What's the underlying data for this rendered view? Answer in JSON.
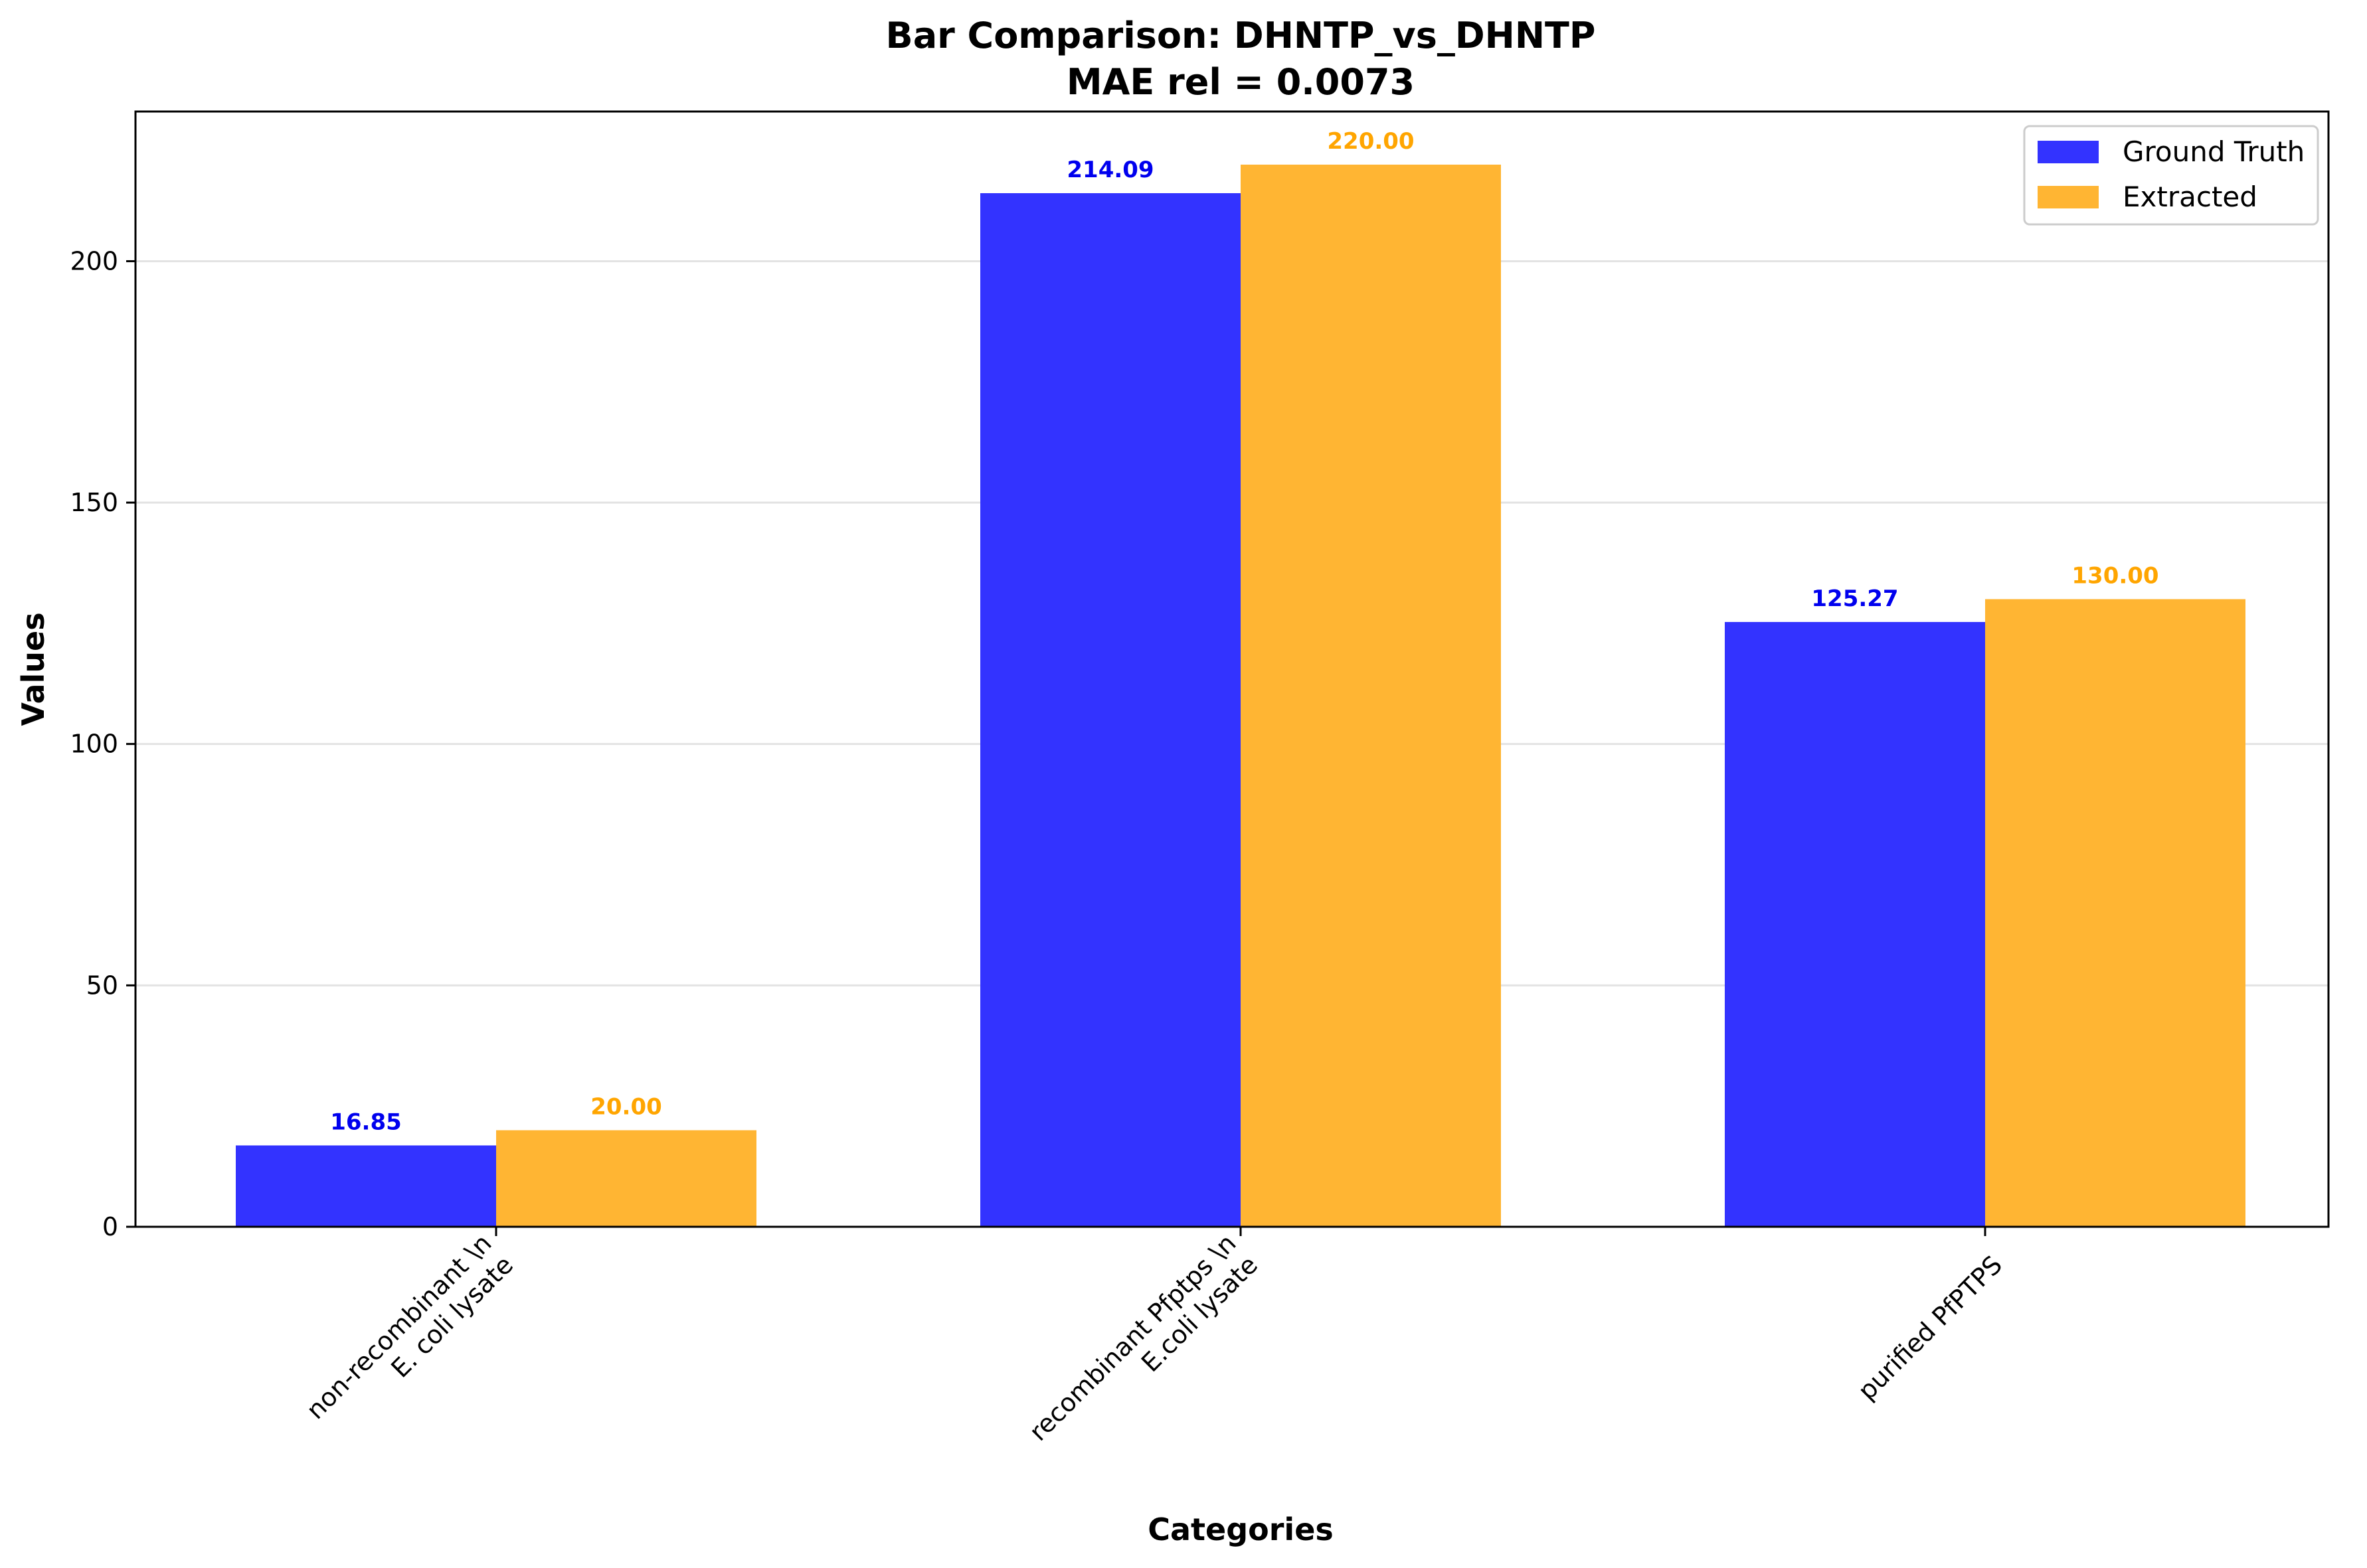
{
  "chart_data": {
    "type": "bar",
    "title": "Bar Comparison: DHNTP_vs_DHNTP",
    "subtitle": "MAE rel = 0.0073",
    "xlabel": "Categories",
    "ylabel": "Values",
    "categories": [
      [
        "non-recombinant \\n",
        "E. coli lysate"
      ],
      [
        "recombinant Pfptps \\n",
        "E.coli lysate"
      ],
      [
        "purified PfPTPS"
      ]
    ],
    "series": [
      {
        "name": "Ground Truth",
        "values": [
          16.85,
          214.09,
          125.27
        ],
        "labels": [
          "16.85",
          "214.09",
          "125.27"
        ],
        "color": "#3333ff",
        "label_color": "#0000ee"
      },
      {
        "name": "Extracted",
        "values": [
          20.0,
          220.0,
          130.0
        ],
        "labels": [
          "20.00",
          "220.00",
          "130.00"
        ],
        "color": "#ffb533",
        "label_color": "#ffa500"
      }
    ],
    "ylim": [
      0,
      231
    ],
    "yticks": [
      0,
      50,
      100,
      150,
      200
    ],
    "ytick_labels": [
      "0",
      "50",
      "100",
      "150",
      "200"
    ],
    "grid": "horizontal",
    "legend_position": "top-right"
  }
}
